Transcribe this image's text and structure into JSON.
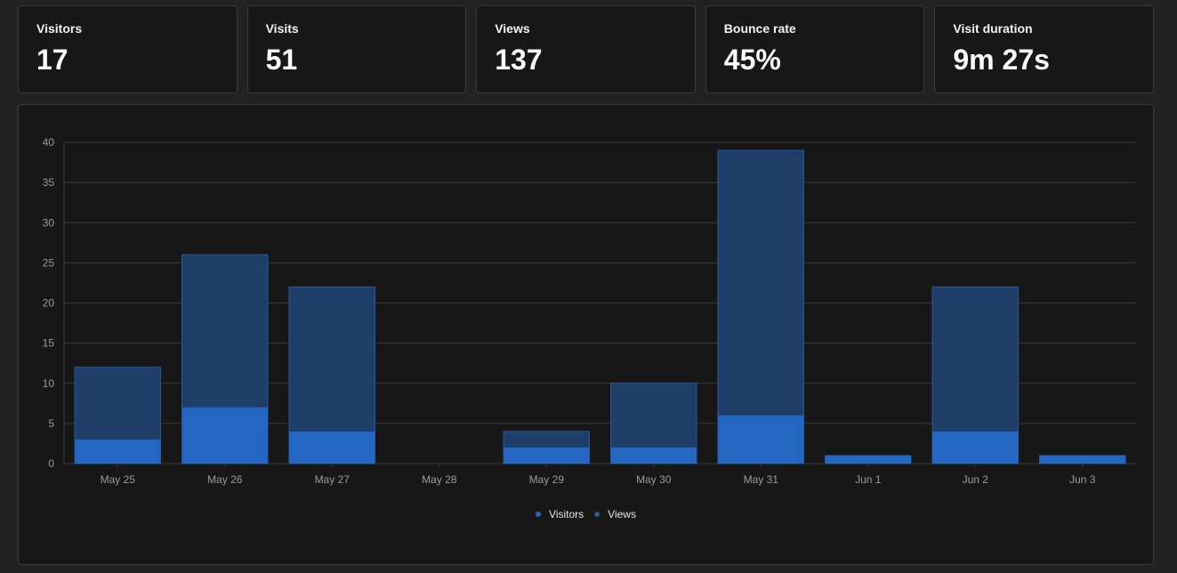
{
  "stats": [
    {
      "label": "Visitors",
      "value": "17"
    },
    {
      "label": "Visits",
      "value": "51"
    },
    {
      "label": "Views",
      "value": "137"
    },
    {
      "label": "Bounce rate",
      "value": "45%"
    },
    {
      "label": "Visit duration",
      "value": "9m 27s"
    }
  ],
  "colors": {
    "visitors": "#2467c2",
    "views": "#1f3e67",
    "views_edge": "#2a5a99",
    "grid": "#3a3a3a",
    "tick_label": "#9a9a9a"
  },
  "chart_data": {
    "type": "bar",
    "stacked": "overlay",
    "categories": [
      "May 25",
      "May 26",
      "May 27",
      "May 28",
      "May 29",
      "May 30",
      "May 31",
      "Jun 1",
      "Jun 2",
      "Jun 3"
    ],
    "series": [
      {
        "name": "Visitors",
        "values": [
          3,
          7,
          4,
          0,
          2,
          2,
          6,
          1,
          4,
          1
        ]
      },
      {
        "name": "Views",
        "values": [
          12,
          26,
          22,
          0,
          4,
          10,
          39,
          1,
          22,
          1
        ]
      }
    ],
    "yticks": [
      "0",
      "5",
      "10",
      "15",
      "20",
      "25",
      "30",
      "35",
      "40"
    ],
    "ylim": [
      0,
      40
    ],
    "grid": true,
    "legend_position": "bottom-center",
    "title": "",
    "xlabel": "",
    "ylabel": ""
  },
  "legend": [
    {
      "label": "Visitors"
    },
    {
      "label": "Views"
    }
  ]
}
